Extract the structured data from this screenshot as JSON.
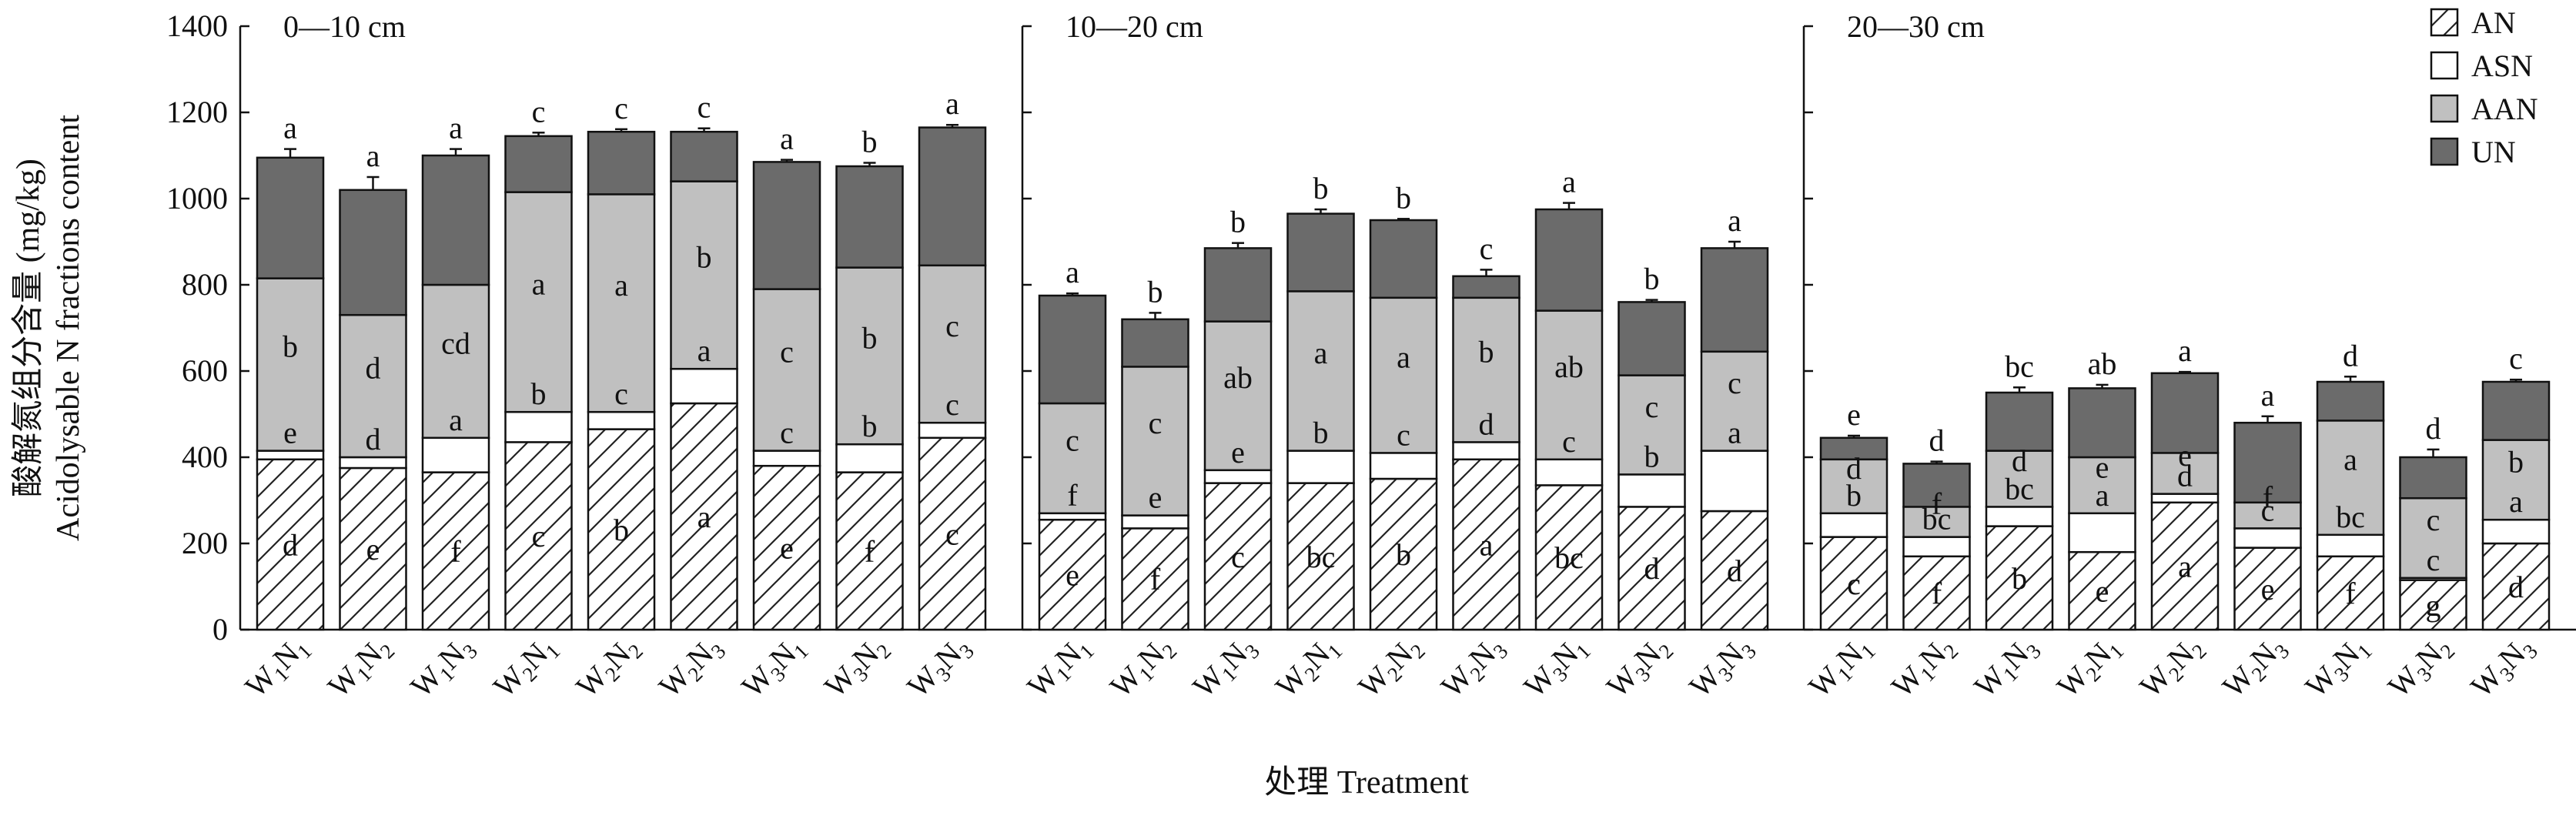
{
  "chart_data": {
    "type": "bar",
    "stacked": true,
    "ylabel_cn": "酸解氮组分含量 (mg/kg)",
    "ylabel_en": "Acidolysable N fractions content",
    "xlabel": "处理 Treatment",
    "ylim": [
      0,
      1400
    ],
    "yticks": [
      "0",
      "200",
      "400",
      "600",
      "800",
      "1000",
      "1200",
      "1400"
    ],
    "grid": false,
    "legend_position": "top-right",
    "series_names": [
      "AN",
      "ASN",
      "AAN",
      "UN"
    ],
    "colors": {
      "AN": "#ffffff",
      "ASN": "#ffffff",
      "AAN": "#c0c0c0",
      "UN": "#6b6b6b"
    },
    "categories": [
      {
        "w": "W",
        "ws": "1",
        "n": "N",
        "ns": "1"
      },
      {
        "w": "W",
        "ws": "1",
        "n": "N",
        "ns": "2"
      },
      {
        "w": "W",
        "ws": "1",
        "n": "N",
        "ns": "3"
      },
      {
        "w": "W",
        "ws": "2",
        "n": "N",
        "ns": "1"
      },
      {
        "w": "W",
        "ws": "2",
        "n": "N",
        "ns": "2"
      },
      {
        "w": "W",
        "ws": "2",
        "n": "N",
        "ns": "3"
      },
      {
        "w": "W",
        "ws": "3",
        "n": "N",
        "ns": "1"
      },
      {
        "w": "W",
        "ws": "3",
        "n": "N",
        "ns": "2"
      },
      {
        "w": "W",
        "ws": "3",
        "n": "N",
        "ns": "3"
      }
    ],
    "panels": [
      {
        "title": "0—10 cm",
        "bars": [
          {
            "AN": 395,
            "ASN": 20,
            "AAN": 400,
            "UN": 280,
            "err": 20,
            "letters": {
              "AN": "d",
              "ASN": "e",
              "AAN": "b",
              "UN": "a"
            }
          },
          {
            "AN": 375,
            "ASN": 25,
            "AAN": 330,
            "UN": 290,
            "err": 30,
            "letters": {
              "AN": "e",
              "ASN": "d",
              "AAN": "d",
              "UN": "a"
            }
          },
          {
            "AN": 365,
            "ASN": 80,
            "AAN": 355,
            "UN": 300,
            "err": 15,
            "letters": {
              "AN": "f",
              "ASN": "a",
              "AAN": "cd",
              "UN": "a"
            }
          },
          {
            "AN": 435,
            "ASN": 70,
            "AAN": 510,
            "UN": 130,
            "err": 8,
            "letters": {
              "AN": "c",
              "ASN": "b",
              "AAN": "a",
              "UN": "c"
            }
          },
          {
            "AN": 465,
            "ASN": 40,
            "AAN": 505,
            "UN": 145,
            "err": 6,
            "letters": {
              "AN": "b",
              "ASN": "c",
              "AAN": "a",
              "UN": "c"
            }
          },
          {
            "AN": 525,
            "ASN": 80,
            "AAN": 435,
            "UN": 115,
            "err": 8,
            "letters": {
              "AN": "a",
              "ASN": "a",
              "AAN": "b",
              "UN": "c"
            }
          },
          {
            "AN": 380,
            "ASN": 35,
            "AAN": 375,
            "UN": 295,
            "err": 5,
            "letters": {
              "AN": "e",
              "ASN": "c",
              "AAN": "c",
              "UN": "a"
            }
          },
          {
            "AN": 365,
            "ASN": 65,
            "AAN": 410,
            "UN": 235,
            "err": 8,
            "letters": {
              "AN": "f",
              "ASN": "b",
              "AAN": "b",
              "UN": "b"
            }
          },
          {
            "AN": 445,
            "ASN": 35,
            "AAN": 365,
            "UN": 320,
            "err": 6,
            "letters": {
              "AN": "c",
              "ASN": "c",
              "AAN": "c",
              "UN": "a"
            }
          }
        ]
      },
      {
        "title": "10—20 cm",
        "bars": [
          {
            "AN": 255,
            "ASN": 15,
            "AAN": 255,
            "UN": 250,
            "err": 5,
            "letters": {
              "AN": "e",
              "ASN": "f",
              "AAN": "c",
              "UN": "a"
            }
          },
          {
            "AN": 235,
            "ASN": 30,
            "AAN": 345,
            "UN": 110,
            "err": 15,
            "letters": {
              "AN": "f",
              "ASN": "e",
              "AAN": "c",
              "UN": "b"
            }
          },
          {
            "AN": 340,
            "ASN": 30,
            "AAN": 345,
            "UN": 170,
            "err": 12,
            "letters": {
              "AN": "c",
              "ASN": "e",
              "AAN": "ab",
              "UN": "b"
            }
          },
          {
            "AN": 340,
            "ASN": 75,
            "AAN": 370,
            "UN": 180,
            "err": 10,
            "letters": {
              "AN": "bc",
              "ASN": "b",
              "AAN": "a",
              "UN": "b"
            }
          },
          {
            "AN": 350,
            "ASN": 60,
            "AAN": 360,
            "UN": 180,
            "err": 3,
            "letters": {
              "AN": "b",
              "ASN": "c",
              "AAN": "a",
              "UN": "b"
            }
          },
          {
            "AN": 395,
            "ASN": 40,
            "AAN": 335,
            "UN": 50,
            "err": 15,
            "letters": {
              "AN": "a",
              "ASN": "d",
              "AAN": "b",
              "UN": "c"
            }
          },
          {
            "AN": 335,
            "ASN": 60,
            "AAN": 345,
            "UN": 235,
            "err": 15,
            "letters": {
              "AN": "bc",
              "ASN": "c",
              "AAN": "ab",
              "UN": "a"
            }
          },
          {
            "AN": 285,
            "ASN": 75,
            "AAN": 230,
            "UN": 170,
            "err": 5,
            "letters": {
              "AN": "d",
              "ASN": "b",
              "AAN": "c",
              "UN": "b"
            }
          },
          {
            "AN": 275,
            "ASN": 140,
            "AAN": 230,
            "UN": 240,
            "err": 15,
            "letters": {
              "AN": "d",
              "ASN": "a",
              "AAN": "c",
              "UN": "a"
            }
          }
        ]
      },
      {
        "title": "20—30 cm",
        "bars": [
          {
            "AN": 215,
            "ASN": 55,
            "AAN": 125,
            "UN": 50,
            "err": 5,
            "letters": {
              "AN": "c",
              "ASN": "b",
              "AAN": "d",
              "UN": "e"
            }
          },
          {
            "AN": 170,
            "ASN": 45,
            "AAN": 70,
            "UN": 100,
            "err": 5,
            "letters": {
              "AN": "f",
              "ASN": "bc",
              "AAN": "f",
              "UN": "d"
            }
          },
          {
            "AN": 240,
            "ASN": 45,
            "AAN": 130,
            "UN": 135,
            "err": 12,
            "letters": {
              "AN": "b",
              "ASN": "bc",
              "AAN": "d",
              "UN": "bc"
            }
          },
          {
            "AN": 180,
            "ASN": 90,
            "AAN": 130,
            "UN": 160,
            "err": 8,
            "letters": {
              "AN": "e",
              "ASN": "a",
              "AAN": "e",
              "UN": "ab"
            }
          },
          {
            "AN": 295,
            "ASN": 20,
            "AAN": 95,
            "UN": 185,
            "err": 3,
            "letters": {
              "AN": "a",
              "ASN": "d",
              "AAN": "e",
              "UN": "a"
            }
          },
          {
            "AN": 190,
            "ASN": 45,
            "AAN": 60,
            "UN": 185,
            "err": 15,
            "letters": {
              "AN": "e",
              "ASN": "c",
              "AAN": "f",
              "UN": "a"
            }
          },
          {
            "AN": 170,
            "ASN": 50,
            "AAN": 265,
            "UN": 90,
            "err": 12,
            "letters": {
              "AN": "f",
              "ASN": "bc",
              "AAN": "a",
              "UN": "d"
            }
          },
          {
            "AN": 115,
            "ASN": 5,
            "AAN": 185,
            "UN": 95,
            "err": 18,
            "letters": {
              "AN": "g",
              "ASN": "c",
              "AAN": "c",
              "UN": "d"
            }
          },
          {
            "AN": 200,
            "ASN": 55,
            "AAN": 185,
            "UN": 135,
            "err": 5,
            "letters": {
              "AN": "d",
              "ASN": "a",
              "AAN": "b",
              "UN": "c"
            }
          }
        ]
      }
    ]
  }
}
